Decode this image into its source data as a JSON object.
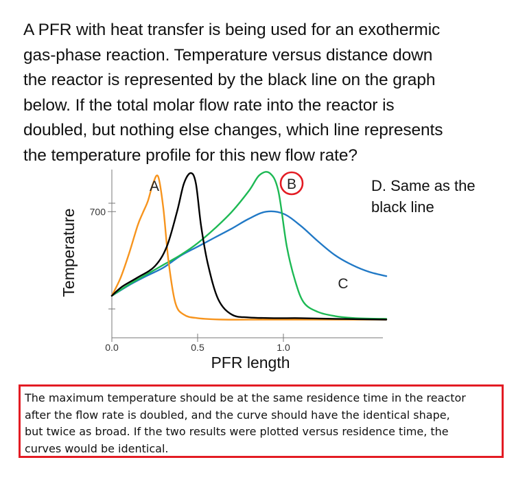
{
  "question": {
    "lines": [
      "A PFR with heat transfer is being used for an exothermic",
      "gas-phase reaction. Temperature versus distance down",
      "the reactor is represented by the black line on the graph",
      "below. If the total molar flow rate into the reactor is",
      "doubled, but nothing else changes, which line represents",
      "the temperature profile for this new flow rate?"
    ]
  },
  "option_d": [
    "D. Same as the",
    "black line"
  ],
  "explanation": {
    "lines": [
      "The maximum temperature should be at the same residence time in the reactor",
      "after the flow rate is doubled, and the curve should have the identical shape,",
      "but twice as broad. If the two results were plotted versus residence time, the",
      "curves would be identical."
    ],
    "border_color": "#e31b23"
  },
  "chart_data": {
    "type": "line",
    "xlabel": "PFR length",
    "ylabel": "Temperature",
    "xticks": [
      {
        "value": 0.0,
        "label": "0.0"
      },
      {
        "value": 0.5,
        "label": "0.5"
      },
      {
        "value": 1.0,
        "label": "1.0"
      }
    ],
    "yticks": [
      {
        "value": 700,
        "label": "700"
      }
    ],
    "xlim": [
      0.0,
      1.6
    ],
    "ylim": [
      520,
      760
    ],
    "series": [
      {
        "name": "black",
        "color": "#000000",
        "x": [
          0.0,
          0.06,
          0.15,
          0.25,
          0.32,
          0.38,
          0.42,
          0.46,
          0.49,
          0.52,
          0.56,
          0.62,
          0.7,
          0.8,
          0.95,
          1.1,
          1.3,
          1.6
        ],
        "y": [
          580,
          593,
          606,
          622,
          650,
          700,
          740,
          755,
          740,
          680,
          625,
          575,
          553,
          549,
          548,
          548,
          547,
          546
        ]
      },
      {
        "name": "A",
        "color": "#f7941d",
        "x": [
          0.0,
          0.05,
          0.1,
          0.15,
          0.18,
          0.21,
          0.24,
          0.27,
          0.3,
          0.33,
          0.37,
          0.42,
          0.5,
          0.65,
          0.9,
          1.2,
          1.6
        ],
        "y": [
          580,
          605,
          640,
          680,
          698,
          715,
          740,
          750,
          705,
          630,
          570,
          553,
          548,
          546,
          546,
          546,
          546
        ]
      },
      {
        "name": "B",
        "color": "#1db954",
        "x": [
          0.0,
          0.1,
          0.2,
          0.3,
          0.4,
          0.5,
          0.6,
          0.7,
          0.8,
          0.86,
          0.92,
          0.97,
          1.02,
          1.07,
          1.12,
          1.2,
          1.3,
          1.42,
          1.6
        ],
        "y": [
          580,
          596,
          610,
          624,
          638,
          655,
          676,
          700,
          730,
          752,
          755,
          730,
          650,
          600,
          570,
          557,
          551,
          548,
          547
        ]
      },
      {
        "name": "C",
        "color": "#2179c6",
        "x": [
          0.0,
          0.1,
          0.2,
          0.3,
          0.4,
          0.5,
          0.6,
          0.7,
          0.8,
          0.9,
          1.0,
          1.1,
          1.2,
          1.3,
          1.4,
          1.5,
          1.6
        ],
        "y": [
          580,
          595,
          608,
          620,
          637,
          650,
          663,
          676,
          690,
          700,
          697,
          680,
          658,
          638,
          624,
          614,
          608
        ]
      }
    ],
    "annotations": [
      {
        "text": "A",
        "series": "A",
        "circled": false
      },
      {
        "text": "B",
        "series": "B",
        "circled": true,
        "circle_color": "#e31b23"
      },
      {
        "text": "C",
        "series": "C",
        "circled": false
      }
    ],
    "grid": false,
    "legend": "none"
  }
}
